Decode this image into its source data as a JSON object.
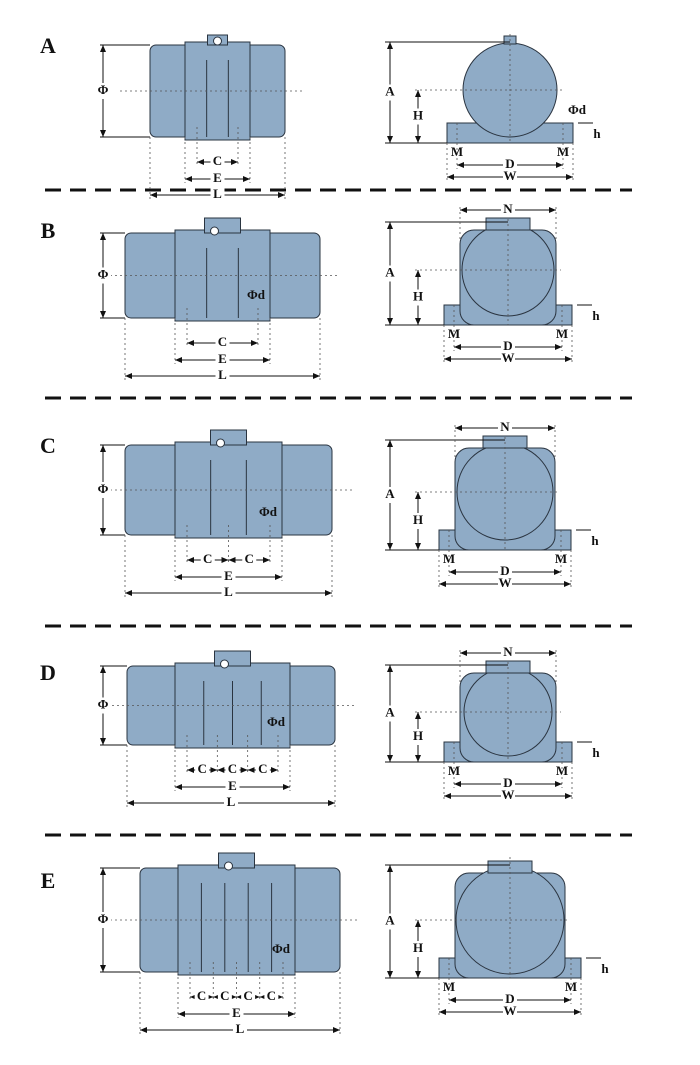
{
  "colors": {
    "body_fill": "#8fabc6",
    "outline": "#2a3440",
    "dimension": "#111111"
  },
  "sections": [
    {
      "letter": "A",
      "side": {
        "phi": "Φ",
        "c": [
          "C"
        ],
        "e": "E",
        "l": "L"
      },
      "end": {
        "a": "A",
        "h": "H",
        "phi_d": "Φd",
        "small_h": "h",
        "m": "M",
        "d": "D",
        "w": "W"
      }
    },
    {
      "letter": "B",
      "side": {
        "phi": "Φ",
        "c": [
          "C"
        ],
        "e": "E",
        "l": "L",
        "phi_d": "Φd"
      },
      "end": {
        "n": "N",
        "a": "A",
        "h": "H",
        "small_h": "h",
        "m": "M",
        "d": "D",
        "w": "W"
      }
    },
    {
      "letter": "C",
      "side": {
        "phi": "Φ",
        "c": [
          "C",
          "C"
        ],
        "e": "E",
        "l": "L",
        "phi_d": "Φd"
      },
      "end": {
        "n": "N",
        "a": "A",
        "h": "H",
        "small_h": "h",
        "m": "M",
        "d": "D",
        "w": "W"
      }
    },
    {
      "letter": "D",
      "side": {
        "phi": "Φ",
        "c": [
          "C",
          "C",
          "C"
        ],
        "e": "E",
        "l": "L",
        "phi_d": "Φd"
      },
      "end": {
        "n": "N",
        "a": "A",
        "h": "H",
        "small_h": "h",
        "m": "M",
        "d": "D",
        "w": "W"
      }
    },
    {
      "letter": "E",
      "side": {
        "phi": "Φ",
        "c": [
          "C",
          "C",
          "C",
          "C"
        ],
        "e": "E",
        "l": "L",
        "phi_d": "Φd"
      },
      "end": {
        "a": "A",
        "h": "H",
        "small_h": "h",
        "m": "M",
        "d": "D",
        "w": "W"
      }
    }
  ]
}
